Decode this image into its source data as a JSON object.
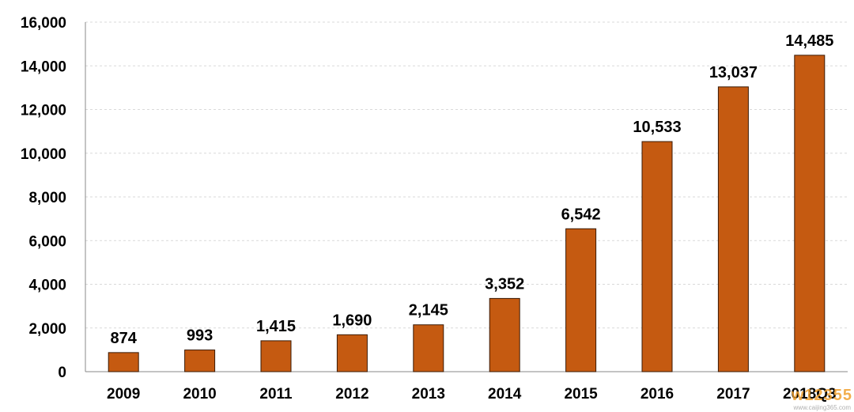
{
  "chart_data": {
    "type": "bar",
    "categories": [
      "2009",
      "2010",
      "2011",
      "2012",
      "2013",
      "2014",
      "2015",
      "2016",
      "2017",
      "2018Q3"
    ],
    "values": [
      874,
      993,
      1415,
      1690,
      2145,
      3352,
      6542,
      10533,
      13037,
      14485
    ],
    "data_labels": [
      "874",
      "993",
      "1,415",
      "1,690",
      "2,145",
      "3,352",
      "6,542",
      "10,533",
      "13,037",
      "14,485"
    ],
    "y_ticks": [
      0,
      2000,
      4000,
      6000,
      8000,
      10000,
      12000,
      14000,
      16000
    ],
    "y_tick_labels": [
      "0",
      "2,000",
      "4,000",
      "6,000",
      "8,000",
      "10,000",
      "12,000",
      "14,000",
      "16,000"
    ],
    "ylim": [
      0,
      16000
    ],
    "grid": true,
    "legend": "none",
    "bar_color": "#c55a11",
    "bar_outline_color": "#3a1a05"
  },
  "watermark": {
    "main": "w12355",
    "sub": "www.caijing365.com",
    "colors": [
      "#6fa8dc",
      "#f0a030"
    ]
  }
}
